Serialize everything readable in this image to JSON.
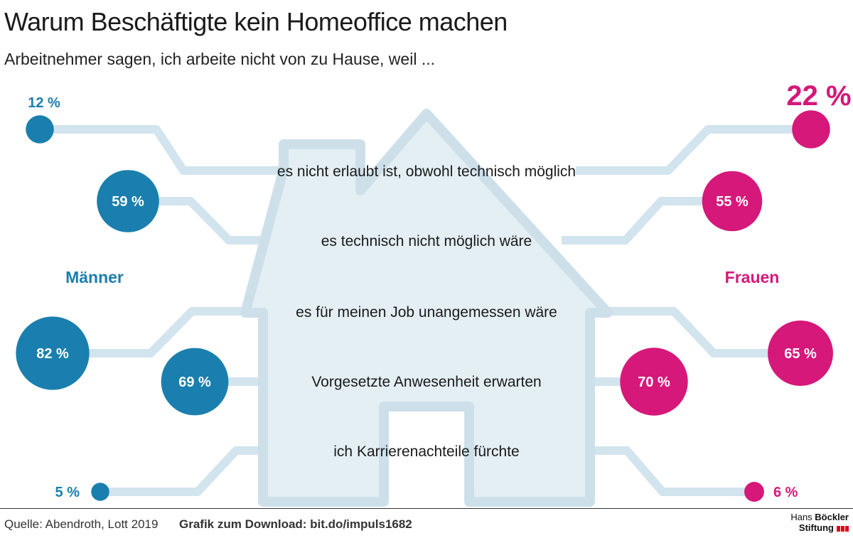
{
  "title": "Warum Beschäftigte kein Homeoffice machen",
  "subtitle": "Arbeitnehmer sagen, ich arbeite nicht von zu Hause, weil ...",
  "footer": {
    "source": "Quelle: Abendroth, Lott 2019",
    "download": "Grafik zum Download: bit.do/impuls1682",
    "logo_line1_a": "Hans ",
    "logo_line1_b": "Böckler",
    "logo_line2": "Stiftung"
  },
  "colors": {
    "men": "#1a7fae",
    "women": "#d6187a",
    "house": "#e4eff4",
    "house_outline": "#cde0ea",
    "connector": "#d2e4ee"
  },
  "chart_data": {
    "type": "bubble-comparison",
    "groups": [
      {
        "name": "Männer",
        "color": "#1a7fae"
      },
      {
        "name": "Frauen",
        "color": "#d6187a"
      }
    ],
    "unit": "%",
    "categories": [
      "es nicht erlaubt ist, obwohl technisch möglich",
      "es technisch nicht möglich wäre",
      "es für meinen Job unangemessen wäre",
      "Vorgesetzte Anwesenheit erwarten",
      "ich Karrierenachteile fürchte"
    ],
    "series": [
      {
        "name": "Männer",
        "values": [
          12,
          59,
          82,
          69,
          5
        ],
        "labels": [
          "12 %",
          "59 %",
          "82 %",
          "69 %",
          "5 %"
        ]
      },
      {
        "name": "Frauen",
        "values": [
          22,
          55,
          65,
          70,
          6
        ],
        "labels": [
          "22 %",
          "55 %",
          "65 %",
          "70 %",
          "6 %"
        ]
      }
    ]
  }
}
